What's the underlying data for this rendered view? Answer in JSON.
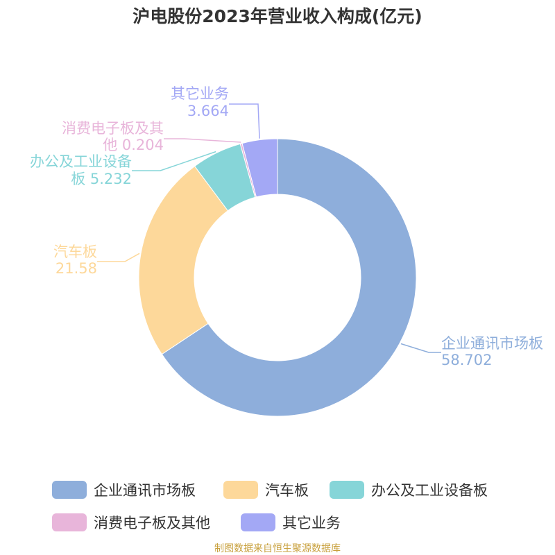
{
  "chart_data": {
    "type": "pie",
    "title": "沪电股份2023年营业收入构成(亿元)",
    "categories": [
      "企业通讯市场板",
      "汽车板",
      "办公及工业设备板",
      "消费电子板及其他",
      "其它业务"
    ],
    "values": [
      58.702,
      21.58,
      5.232,
      0.204,
      3.664
    ],
    "value_labels": [
      "58.702",
      "21.58",
      "5.232",
      "0.204",
      "3.664"
    ],
    "colors": [
      "#8eaedb",
      "#fdd89a",
      "#86d5d8",
      "#e8b5da",
      "#a3a8f5"
    ],
    "labels": [
      {
        "lines": [
          "企业通讯市场板",
          "58.702"
        ]
      },
      {
        "lines": [
          "汽车板",
          "21.58"
        ]
      },
      {
        "lines": [
          "办公及工业设备",
          "板 5.232"
        ]
      },
      {
        "lines": [
          "消费电子板及其",
          "他 0.204"
        ]
      },
      {
        "lines": [
          "其它业务",
          "3.664"
        ]
      }
    ],
    "legend": {
      "position": "bottom",
      "items": [
        "企业通讯市场板",
        "汽车板",
        "办公及工业设备板",
        "消费电子板及其他",
        "其它业务"
      ]
    },
    "source": "制图数据来自恒生聚源数据库",
    "source_color": "#c8a03c"
  }
}
